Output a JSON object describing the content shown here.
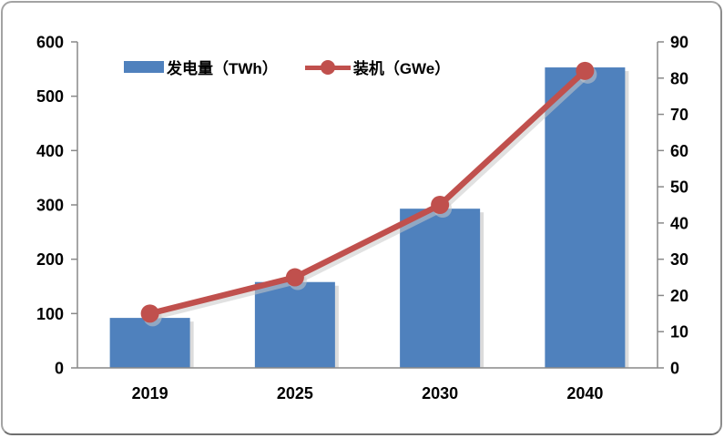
{
  "chart_data": {
    "type": "bar",
    "subtype": "bar-line-combo",
    "categories": [
      "2019",
      "2025",
      "2030",
      "2040"
    ],
    "series": [
      {
        "name": "发电量（TWh）",
        "type": "bar",
        "axis": "left",
        "color": "#4f81bd",
        "values": [
          92,
          158,
          293,
          553
        ]
      },
      {
        "name": "装机（GWe）",
        "type": "line",
        "axis": "right",
        "color": "#c0504d",
        "values": [
          15,
          25,
          45,
          82
        ]
      }
    ],
    "left_axis": {
      "min": 0,
      "max": 600,
      "step": 100,
      "tick_labels": [
        "0",
        "100",
        "200",
        "300",
        "400",
        "500",
        "600"
      ]
    },
    "right_axis": {
      "min": 0,
      "max": 90,
      "step": 10,
      "tick_labels": [
        "0",
        "10",
        "20",
        "30",
        "40",
        "50",
        "60",
        "70",
        "80",
        "90"
      ]
    },
    "title": "",
    "xlabel": "",
    "ylabel_left": "",
    "ylabel_right": "",
    "grid": false,
    "legend_position": "top-inside"
  },
  "legend": {
    "items": [
      {
        "label": "发电量（TWh）",
        "swatch": "bar",
        "color": "#4f81bd"
      },
      {
        "label": "装机（GWe）",
        "swatch": "line-marker",
        "color": "#c0504d"
      }
    ]
  },
  "colors": {
    "bar": "#4f81bd",
    "line": "#c0504d",
    "axis": "#898989",
    "text": "#000000",
    "frame_border": "#a3a3a3",
    "shadow": "#c9c9c9"
  }
}
